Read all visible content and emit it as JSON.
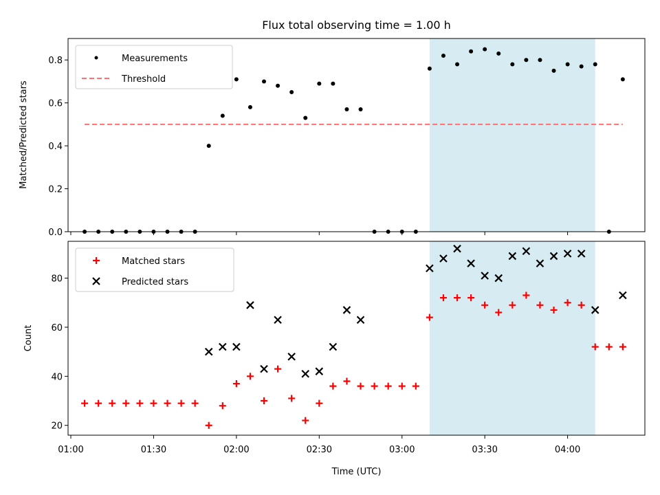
{
  "chart_data": [
    {
      "type": "scatter",
      "title": "Flux total observing time = 1.00 h",
      "xlabel": "",
      "ylabel": "Matched/Predicted stars",
      "xlim": [
        "00:59",
        "04:28"
      ],
      "ylim": [
        0,
        0.9
      ],
      "yticks": [
        "0.0",
        "0.2",
        "0.4",
        "0.6",
        "0.8"
      ],
      "grid": false,
      "legend": "top-left",
      "highlight_span": {
        "x": [
          "03:10",
          "04:10"
        ],
        "color": "#add8e6"
      },
      "series": [
        {
          "name": "Measurements",
          "marker": "dot",
          "color": "#000000",
          "x": [
            "01:05",
            "01:10",
            "01:15",
            "01:20",
            "01:25",
            "01:30",
            "01:35",
            "01:40",
            "01:45",
            "01:50",
            "01:55",
            "02:00",
            "02:05",
            "02:10",
            "02:15",
            "02:20",
            "02:25",
            "02:30",
            "02:35",
            "02:40",
            "02:45",
            "02:50",
            "02:55",
            "03:00",
            "03:05",
            "03:10",
            "03:15",
            "03:20",
            "03:25",
            "03:30",
            "03:35",
            "03:40",
            "03:45",
            "03:50",
            "03:55",
            "04:00",
            "04:05",
            "04:10",
            "04:15",
            "04:20"
          ],
          "y": [
            0,
            0,
            0,
            0,
            0,
            0,
            0,
            0,
            0,
            0.4,
            0.54,
            0.71,
            0.58,
            0.7,
            0.68,
            0.65,
            0.53,
            0.69,
            0.69,
            0.57,
            0.57,
            0,
            0,
            0,
            0,
            0.76,
            0.82,
            0.78,
            0.84,
            0.85,
            0.83,
            0.78,
            0.8,
            0.8,
            0.75,
            0.78,
            0.77,
            0.78,
            0,
            0.71
          ]
        },
        {
          "name": "Threshold",
          "style": "dashed-line",
          "color": "#ff7070",
          "x": [
            "01:05",
            "04:20"
          ],
          "y": [
            0.5,
            0.5
          ]
        }
      ]
    },
    {
      "type": "scatter",
      "title": "",
      "xlabel": "Time (UTC)",
      "ylabel": "Count",
      "xlim": [
        "00:59",
        "04:28"
      ],
      "ylim": [
        16,
        95
      ],
      "yticks": [
        "20",
        "40",
        "60",
        "80"
      ],
      "xticks": [
        "01:00",
        "01:30",
        "02:00",
        "02:30",
        "03:00",
        "03:30",
        "04:00"
      ],
      "grid": false,
      "legend": "top-left",
      "highlight_span": {
        "x": [
          "03:10",
          "04:10"
        ],
        "color": "#add8e6"
      },
      "series": [
        {
          "name": "Matched stars",
          "marker": "plus",
          "color": "#ff0000",
          "x": [
            "01:05",
            "01:10",
            "01:15",
            "01:20",
            "01:25",
            "01:30",
            "01:35",
            "01:40",
            "01:45",
            "01:50",
            "01:55",
            "02:00",
            "02:05",
            "02:10",
            "02:15",
            "02:20",
            "02:25",
            "02:30",
            "02:35",
            "02:40",
            "02:45",
            "02:50",
            "02:55",
            "03:00",
            "03:05",
            "03:10",
            "03:15",
            "03:20",
            "03:25",
            "03:30",
            "03:35",
            "03:40",
            "03:45",
            "03:50",
            "03:55",
            "04:00",
            "04:05",
            "04:10",
            "04:15",
            "04:20"
          ],
          "y": [
            29,
            29,
            29,
            29,
            29,
            29,
            29,
            29,
            29,
            20,
            28,
            37,
            40,
            30,
            43,
            31,
            22,
            29,
            36,
            38,
            36,
            36,
            36,
            36,
            36,
            64,
            72,
            72,
            72,
            69,
            66,
            69,
            73,
            69,
            67,
            70,
            69,
            52,
            52,
            52
          ]
        },
        {
          "name": "Predicted stars",
          "marker": "x",
          "color": "#000000",
          "x": [
            "01:50",
            "01:55",
            "02:00",
            "02:05",
            "02:10",
            "02:15",
            "02:20",
            "02:25",
            "02:30",
            "02:35",
            "02:40",
            "02:45",
            "03:10",
            "03:15",
            "03:20",
            "03:25",
            "03:30",
            "03:35",
            "03:40",
            "03:45",
            "03:50",
            "03:55",
            "04:00",
            "04:05",
            "04:10",
            "04:20"
          ],
          "y": [
            50,
            52,
            52,
            69,
            43,
            63,
            48,
            41,
            42,
            52,
            67,
            63,
            84,
            88,
            92,
            86,
            81,
            80,
            89,
            91,
            86,
            89,
            90,
            90,
            67,
            73
          ]
        }
      ]
    }
  ]
}
